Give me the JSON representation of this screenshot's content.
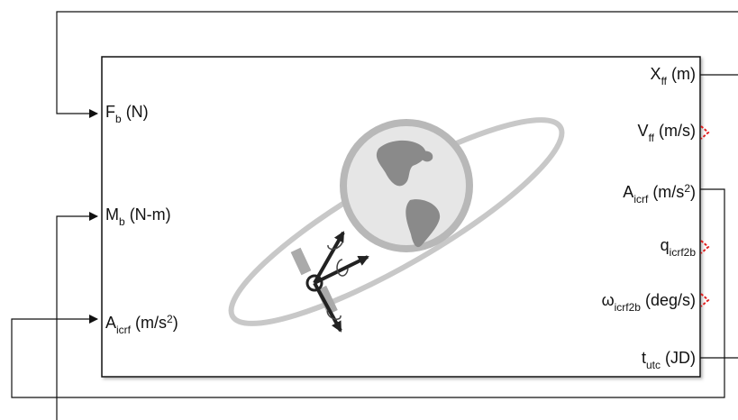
{
  "block": {
    "inputs": [
      {
        "name": "F",
        "sub": "b",
        "unit": " (N)",
        "unit_sup": "",
        "unit_tail": ""
      },
      {
        "name": "M",
        "sub": "b",
        "unit": " (N-m)",
        "unit_sup": "",
        "unit_tail": ""
      },
      {
        "name": "A",
        "sub": "icrf",
        "unit": " (m/s",
        "unit_sup": "2",
        "unit_tail": ")"
      }
    ],
    "outputs": [
      {
        "name": "X",
        "sub": "ff",
        "unit": " (m)",
        "unit_sup": "",
        "unit_tail": ""
      },
      {
        "name": "V",
        "sub": "ff",
        "unit": " (m/s)",
        "unit_sup": "",
        "unit_tail": ""
      },
      {
        "name": "A",
        "sub": "icrf",
        "unit": " (m/s",
        "unit_sup": "2",
        "unit_tail": ")"
      },
      {
        "name": "q",
        "sub": "icrf2b",
        "unit": "",
        "unit_sup": "",
        "unit_tail": ""
      },
      {
        "name": "ω",
        "sub": "icrf2b",
        "unit": " (deg/s)",
        "unit_sup": "",
        "unit_tail": ""
      },
      {
        "name": "t",
        "sub": "utc",
        "unit": " (JD)",
        "unit_sup": "",
        "unit_tail": ""
      }
    ]
  },
  "colors": {
    "line": "#111111",
    "globe_fill": "#e6e6e6",
    "globe_ring": "#b8b8b8",
    "land": "#8a8a8a",
    "orbit": "#c8c8c8",
    "unconnected_marker": "#e02020",
    "axes": "#222222"
  },
  "icons": {
    "center": "earth-globe-with-orbit-and-satellite-axes-icon",
    "unconnected": "red-dashed-unconnected-port-marker"
  }
}
